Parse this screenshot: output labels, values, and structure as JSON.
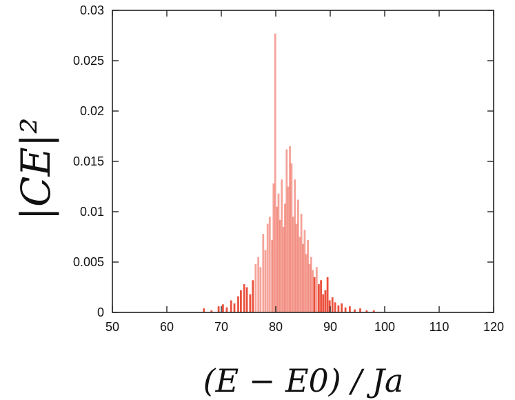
{
  "chart_data": {
    "type": "bar",
    "title": "",
    "xlabel": "(E − E0) / Ja",
    "ylabel": "|CE|²",
    "xlim": [
      50,
      120
    ],
    "ylim": [
      0,
      0.03
    ],
    "x_ticks": [
      "50",
      "60",
      "70",
      "80",
      "90",
      "100",
      "110",
      "120"
    ],
    "y_ticks": [
      "0",
      "0.005",
      "0.01",
      "0.015",
      "0.02",
      "0.025",
      "0.03"
    ],
    "grid": false,
    "legend": "none",
    "bar_color": "#e8321c",
    "series": [
      {
        "x": [
          66.8,
          68.2,
          69.5,
          70.3,
          71.0,
          71.8,
          72.4,
          73.1,
          73.6,
          74.2,
          74.7,
          75.3,
          75.8,
          76.3,
          76.8,
          77.2,
          77.7,
          78.1,
          78.5,
          78.9,
          79.3,
          79.6,
          79.9,
          80.2,
          80.5,
          80.8,
          81.1,
          81.4,
          81.7,
          82.0,
          82.3,
          82.6,
          82.9,
          83.2,
          83.5,
          83.8,
          84.1,
          84.4,
          84.7,
          85.0,
          85.3,
          85.6,
          85.9,
          86.2,
          86.5,
          86.8,
          87.1,
          87.5,
          87.9,
          88.3,
          88.7,
          89.1,
          89.5,
          89.9,
          90.4,
          90.9,
          91.5,
          92.1,
          92.8,
          93.6,
          94.5,
          95.5,
          96.7,
          98.0
        ],
        "y": [
          0.0004,
          0.0002,
          0.0006,
          0.0008,
          0.0005,
          0.0012,
          0.0009,
          0.0016,
          0.0022,
          0.0028,
          0.0025,
          0.0018,
          0.0032,
          0.0048,
          0.0055,
          0.0045,
          0.0078,
          0.0062,
          0.0088,
          0.0095,
          0.0072,
          0.0128,
          0.0277,
          0.0105,
          0.0118,
          0.0092,
          0.0132,
          0.0085,
          0.0108,
          0.0162,
          0.0125,
          0.0165,
          0.0148,
          0.0095,
          0.0132,
          0.0088,
          0.0112,
          0.0075,
          0.0098,
          0.0068,
          0.0082,
          0.0058,
          0.0072,
          0.0048,
          0.0055,
          0.0042,
          0.0035,
          0.0045,
          0.0028,
          0.0032,
          0.0018,
          0.0022,
          0.0035,
          0.0012,
          0.0015,
          0.001,
          0.0007,
          0.0009,
          0.0005,
          0.0006,
          0.0003,
          0.0004,
          0.0002,
          0.0002
        ]
      }
    ]
  }
}
